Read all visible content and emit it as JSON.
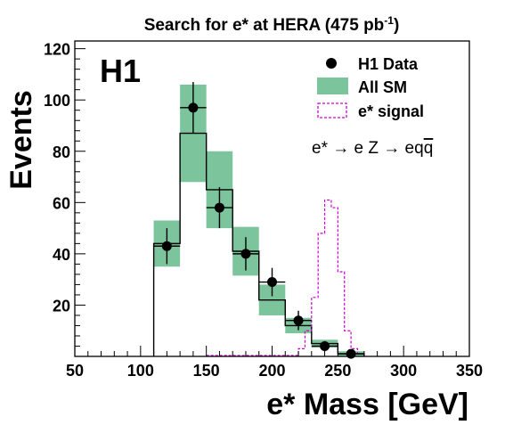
{
  "chart_data": {
    "type": "bar",
    "title": "Search for e* at HERA (475 pb",
    "title_sup": "-1",
    "title_end": ")",
    "experiment_label": "H1",
    "xlabel": "e* Mass [GeV]",
    "ylabel": "Events",
    "xlim": [
      50,
      350
    ],
    "ylim": [
      0,
      123
    ],
    "x_ticks": [
      "50",
      "100",
      "150",
      "200",
      "250",
      "300",
      "350"
    ],
    "y_ticks": [
      "20",
      "40",
      "60",
      "80",
      "100",
      "120"
    ],
    "legend": {
      "placement": "top-right",
      "data_label": "H1 Data",
      "sm_label": "All SM",
      "signal_label": "e* signal"
    },
    "process_label": {
      "prefix": "e* ",
      "arrow1": "→",
      "middle": " e Z ",
      "arrow2": "→",
      "suffix": " eq",
      "qbar": "q"
    },
    "colors": {
      "sm_band": "#7cc49b",
      "signal": "#cc00cc",
      "data": "#000000",
      "sm_line": "#000000"
    },
    "sm_prediction": {
      "name": "All SM",
      "bin_edges": [
        110,
        130,
        150,
        170,
        190,
        210,
        230,
        250,
        270
      ],
      "values": [
        44,
        87,
        65,
        41,
        22,
        12,
        5,
        1
      ],
      "uncertainty": [
        9,
        19,
        15,
        9.5,
        6,
        3,
        1.5,
        1
      ]
    },
    "data_points": {
      "name": "H1 Data",
      "x": [
        120,
        140,
        160,
        180,
        200,
        220,
        240,
        260
      ],
      "y": [
        43,
        97,
        58,
        40,
        29,
        14,
        4,
        1
      ],
      "yerr": [
        7,
        10,
        8,
        6.5,
        5.5,
        3.8,
        2,
        1
      ],
      "xerr": 10
    },
    "signal": {
      "name": "e* signal",
      "bin_edges": [
        220,
        225,
        230,
        235,
        240,
        245,
        250,
        255,
        260,
        265,
        270
      ],
      "values": [
        3,
        10,
        23,
        48,
        61,
        58,
        33,
        10,
        3,
        1
      ]
    }
  }
}
